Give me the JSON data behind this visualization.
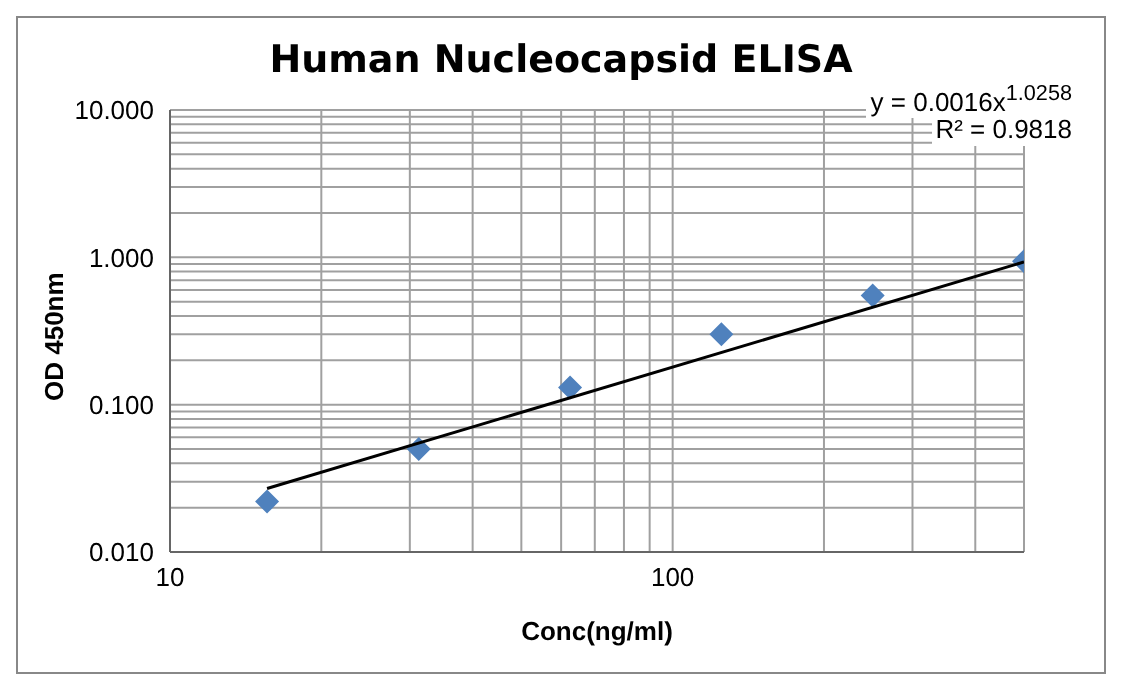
{
  "chart_data": {
    "type": "scatter",
    "title": "Human Nucleocapsid ELISA",
    "xlabel": "Conc(ng/ml)",
    "ylabel": "OD 450nm",
    "annotations": [
      "y = 0.0016x$^{1.0258}$",
      "R² = 0.9818"
    ],
    "log": "xy",
    "grid": true,
    "legend": false,
    "marker": "diamond",
    "xlim": [
      10,
      500
    ],
    "ylim": [
      0.01,
      10
    ],
    "xticks": [
      10,
      {
        "value": 20,
        "label": null
      },
      {
        "value": 30,
        "label": null
      },
      {
        "value": 40,
        "label": null
      },
      {
        "value": 50,
        "label": null
      },
      {
        "value": 60,
        "label": null
      },
      {
        "value": 70,
        "label": null
      },
      {
        "value": 80,
        "label": null
      },
      {
        "value": 90,
        "label": null
      },
      100,
      {
        "value": 200,
        "label": null
      },
      {
        "value": 300,
        "label": null
      },
      {
        "value": 400,
        "label": null
      },
      {
        "value": 500,
        "label": null
      }
    ],
    "yticks": [
      {
        "value": 0.01,
        "label": "0.010"
      },
      {
        "value": 0.02,
        "label": null
      },
      {
        "value": 0.03,
        "label": null
      },
      {
        "value": 0.04,
        "label": null
      },
      {
        "value": 0.05,
        "label": null
      },
      {
        "value": 0.06,
        "label": null
      },
      {
        "value": 0.07,
        "label": null
      },
      {
        "value": 0.08,
        "label": null
      },
      {
        "value": 0.09,
        "label": null
      },
      {
        "value": 0.1,
        "label": "0.100"
      },
      {
        "value": 0.2,
        "label": null
      },
      {
        "value": 0.3,
        "label": null
      },
      {
        "value": 0.4,
        "label": null
      },
      {
        "value": 0.5,
        "label": null
      },
      {
        "value": 0.6,
        "label": null
      },
      {
        "value": 0.7,
        "label": null
      },
      {
        "value": 0.8,
        "label": null
      },
      {
        "value": 0.9,
        "label": null
      },
      {
        "value": 1,
        "label": "1.000"
      },
      {
        "value": 2,
        "label": null
      },
      {
        "value": 3,
        "label": null
      },
      {
        "value": 4,
        "label": null
      },
      {
        "value": 5,
        "label": null
      },
      {
        "value": 6,
        "label": null
      },
      {
        "value": 7,
        "label": null
      },
      {
        "value": 8,
        "label": null
      },
      {
        "value": 9,
        "label": null
      },
      {
        "value": 10,
        "label": "10.000"
      }
    ],
    "series": [
      {
        "type": "scatter",
        "color": "#4f81bd",
        "x": [
          15.6,
          31.25,
          62.5,
          125,
          250,
          500
        ],
        "values": [
          0.022,
          0.05,
          0.131,
          0.3,
          0.55,
          0.94
        ]
      },
      {
        "type": "line",
        "color": "#000000",
        "marker": "none",
        "x": [
          15.6,
          500
        ],
        "values": [
          0.027,
          0.93
        ]
      }
    ]
  }
}
